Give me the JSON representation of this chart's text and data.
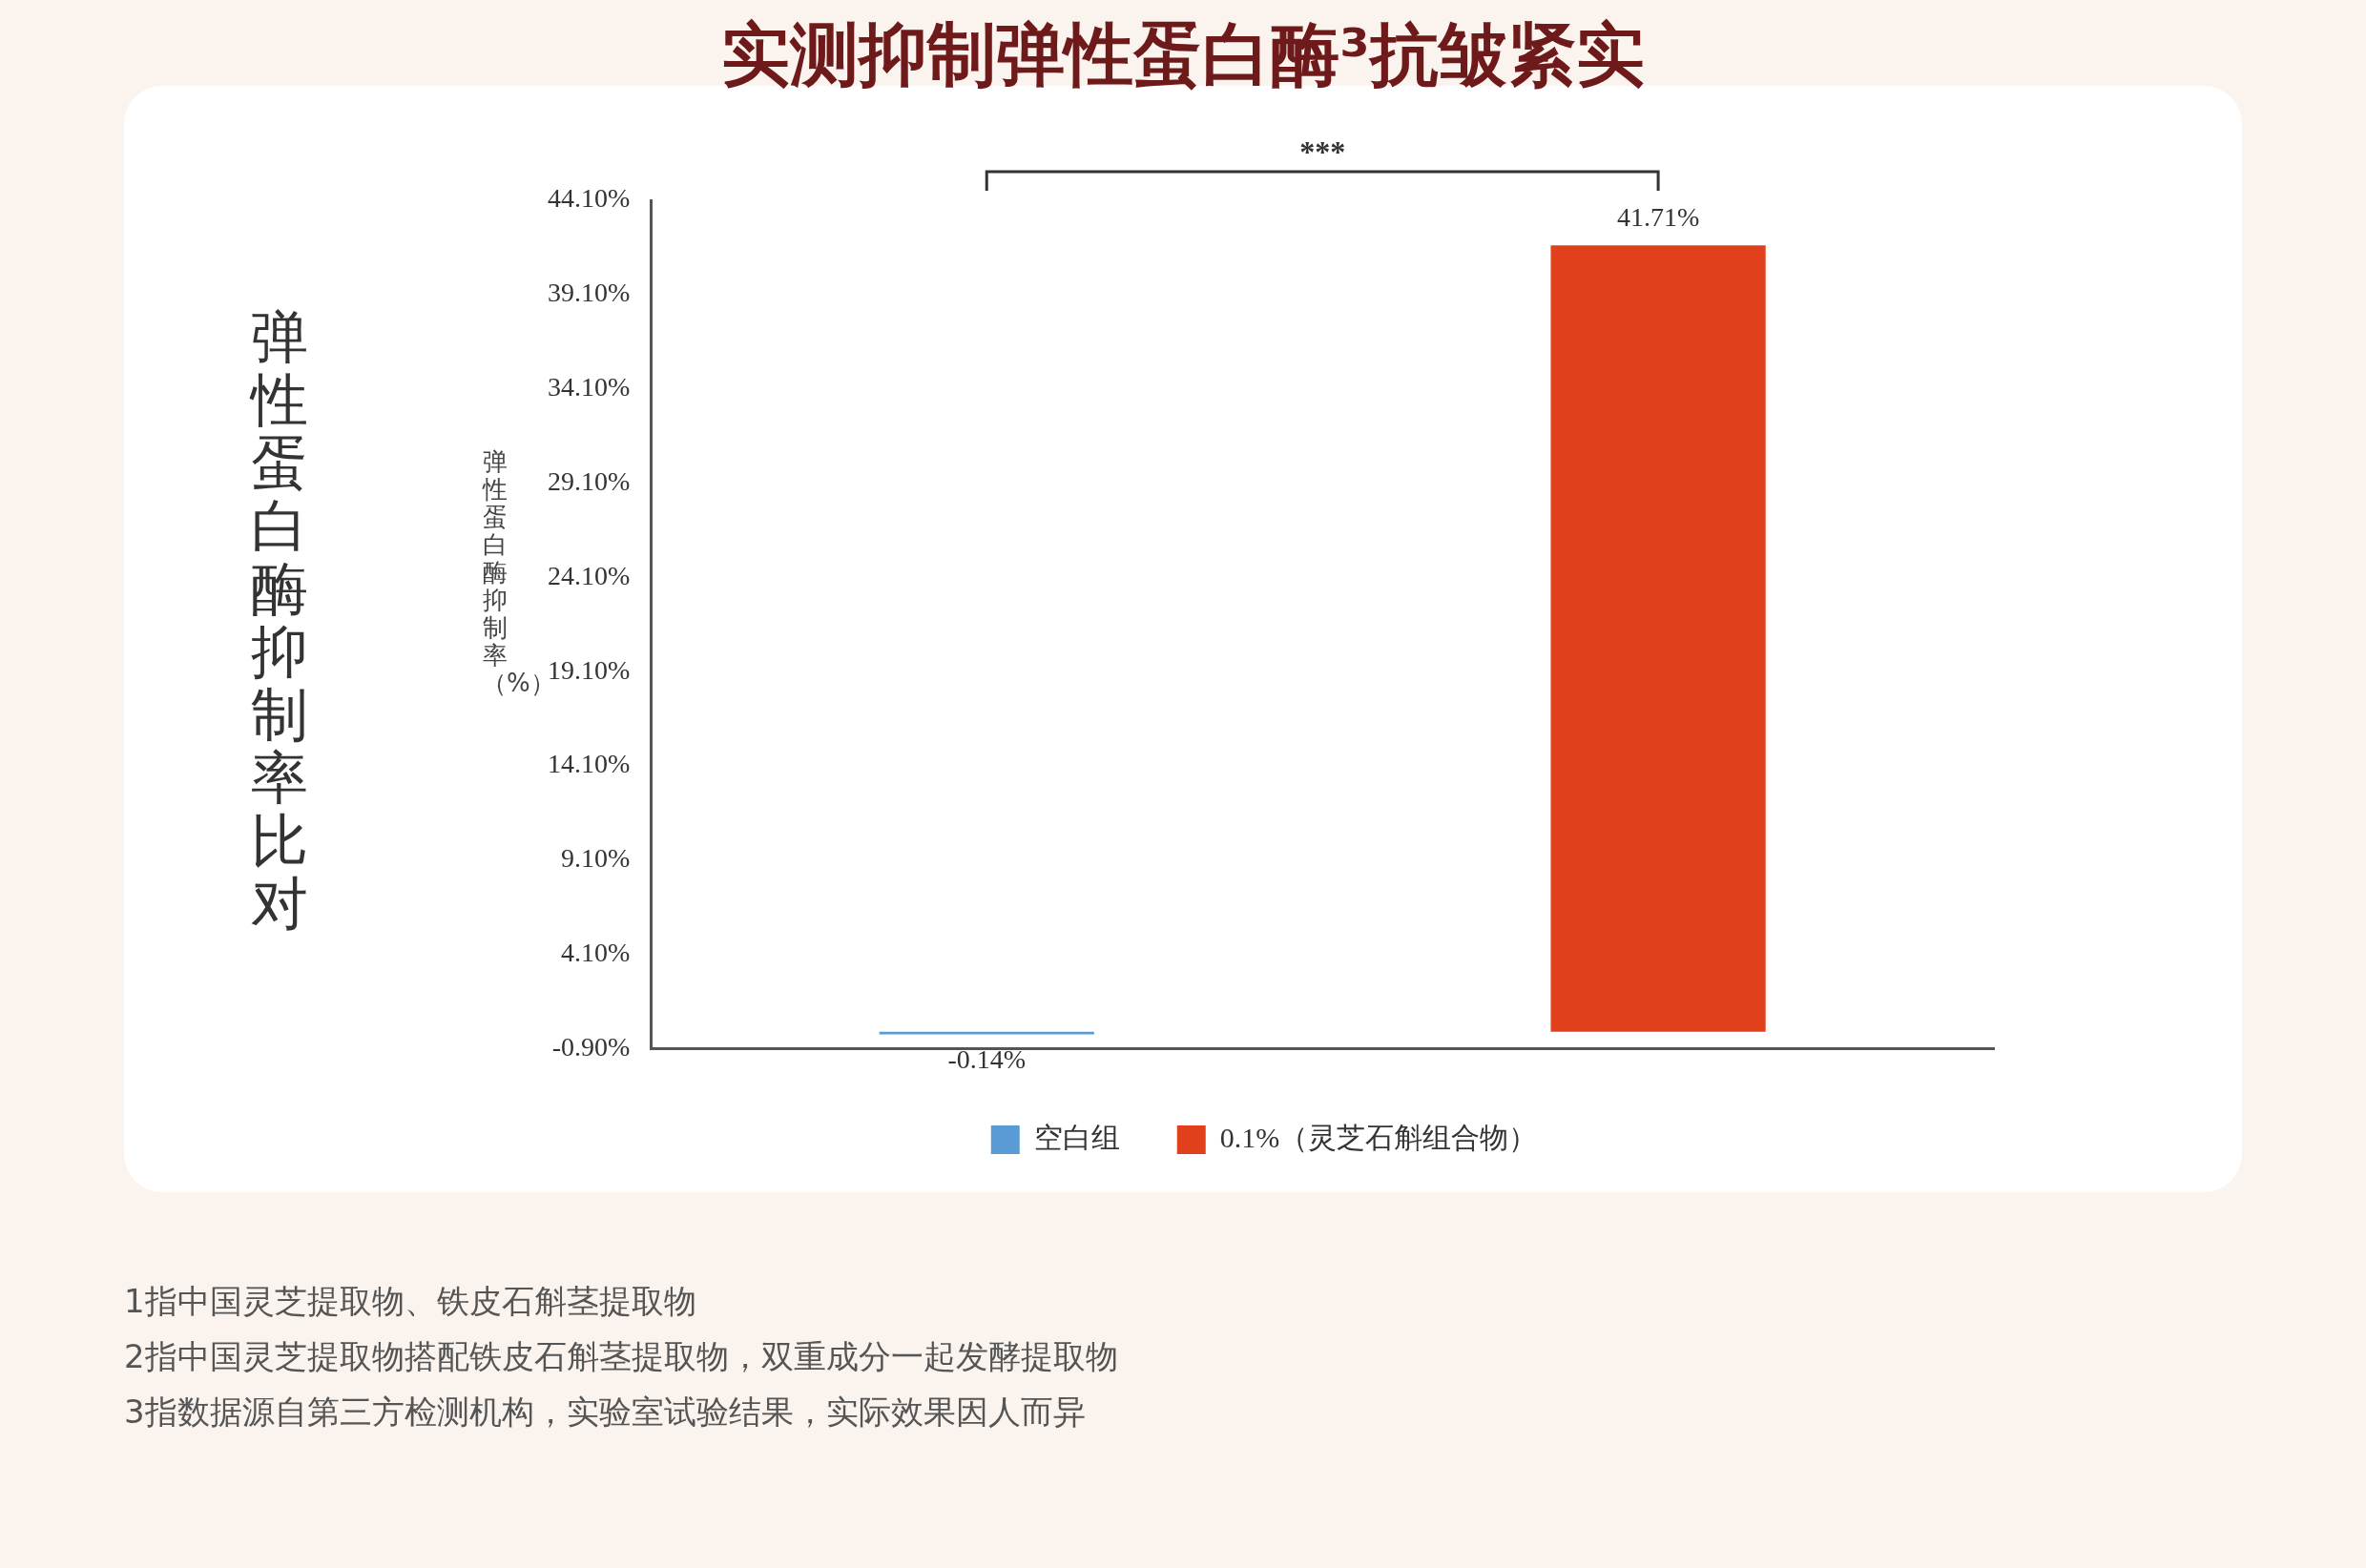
{
  "chart_data": {
    "type": "bar",
    "title": "实测抑制弹性蛋白酶³抗皱紧实",
    "ylabel": "弹性蛋白酶抑制率（%）",
    "categories": [
      null,
      null
    ],
    "series": [
      {
        "name": "空白组",
        "color": "#5b9bd5",
        "values": [
          -0.14,
          null
        ],
        "value_labels": [
          "-0.14%",
          null
        ]
      },
      {
        "name": "0.1%（灵芝石斛组合物）",
        "color": "#e0401c",
        "values": [
          null,
          41.71
        ],
        "value_labels": [
          null,
          "41.71%"
        ]
      }
    ],
    "ylim": [
      -0.9,
      44.1
    ],
    "yticks": [
      {
        "value": -0.9,
        "label": "-0.90%"
      },
      {
        "value": 4.1,
        "label": "4.10%"
      },
      {
        "value": 9.1,
        "label": "9.10%"
      },
      {
        "value": 14.1,
        "label": "14.10%"
      },
      {
        "value": 19.1,
        "label": "19.10%"
      },
      {
        "value": 24.1,
        "label": "24.10%"
      },
      {
        "value": 29.1,
        "label": "29.10%"
      },
      {
        "value": 34.1,
        "label": "34.10%"
      },
      {
        "value": 39.1,
        "label": "39.10%"
      },
      {
        "value": 44.1,
        "label": "44.10%"
      }
    ],
    "grid": false,
    "legend": "bottom",
    "annotations": [
      "弹性蛋白酶抑制率比对",
      "***",
      "1指中国灵芝提取物、铁皮石斛茎提取物",
      "2指中国灵芝提取物搭配铁皮石斛茎提取物，双重成分一起发酵提取物",
      "3指数据源自第三方检测机构，实验室试验结果，实际效果因人而异"
    ]
  }
}
